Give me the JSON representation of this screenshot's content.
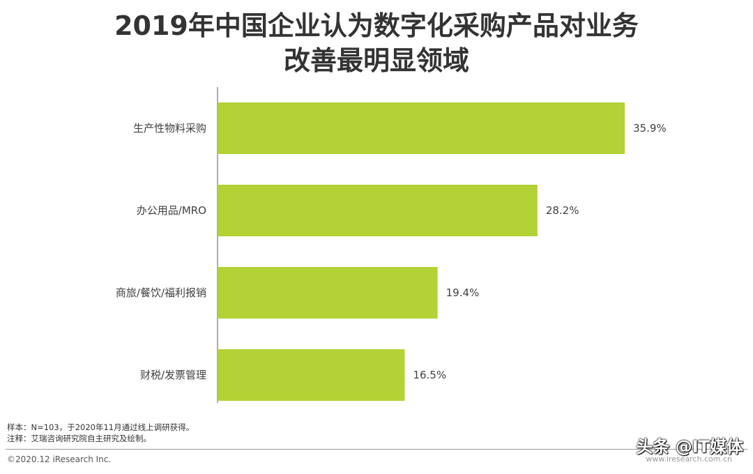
{
  "chart_data": {
    "type": "bar",
    "orientation": "horizontal",
    "title_line1": "2019年中国企业认为数字化采购产品对业务",
    "title_line2": "改善最明显领域",
    "categories": [
      "生产性物料采购",
      "办公用品/MRO",
      "商旅/餐饮/福利报销",
      "财税/发票管理"
    ],
    "values": [
      35.9,
      28.2,
      19.4,
      16.5
    ],
    "value_labels": [
      "35.9%",
      "28.2%",
      "19.4%",
      "16.5%"
    ],
    "xlim": [
      0,
      40
    ],
    "bar_color": "#b2d235",
    "grid": false
  },
  "footnotes": {
    "sample": "样本：N=103，于2020年11月通过线上调研获得。",
    "note": "注释：艾瑞咨询研究院自主研究及绘制。"
  },
  "copyright": "©2020.12 iResearch Inc.",
  "watermark": "头条 @IT媒体",
  "site": "www.iresearch.com.cn"
}
